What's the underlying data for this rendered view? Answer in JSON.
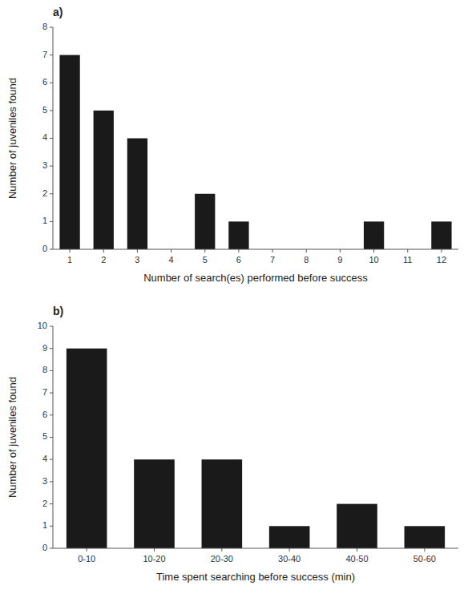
{
  "chart_data": [
    {
      "type": "bar",
      "title": "a)",
      "x": [
        1,
        2,
        3,
        4,
        5,
        6,
        7,
        8,
        9,
        10,
        11,
        12
      ],
      "values": [
        7,
        5,
        4,
        0,
        2,
        1,
        0,
        0,
        0,
        1,
        0,
        1
      ],
      "xlim": [
        0.5,
        12.5
      ],
      "xticks": [
        1,
        2,
        3,
        4,
        5,
        6,
        7,
        8,
        9,
        10,
        11,
        12
      ],
      "ylim": [
        0,
        8
      ],
      "yticks": [
        0,
        1,
        2,
        3,
        4,
        5,
        6,
        7,
        8
      ],
      "xlabel": "Number of search(es) performed before success",
      "ylabel": "Number of juveniles found",
      "color": "#1a1a1a"
    },
    {
      "type": "bar",
      "title": "b)",
      "categories": [
        "0-10",
        "10-20",
        "20-30",
        "30-40",
        "40-50",
        "50-60"
      ],
      "values": [
        9,
        4,
        4,
        1,
        2,
        1
      ],
      "ylim": [
        0,
        10
      ],
      "yticks": [
        0,
        1,
        2,
        3,
        4,
        5,
        6,
        7,
        8,
        9,
        10
      ],
      "xlabel": "Time spent searching before success (min)",
      "ylabel": "Number of juveniles found",
      "color": "#1a1a1a"
    }
  ]
}
